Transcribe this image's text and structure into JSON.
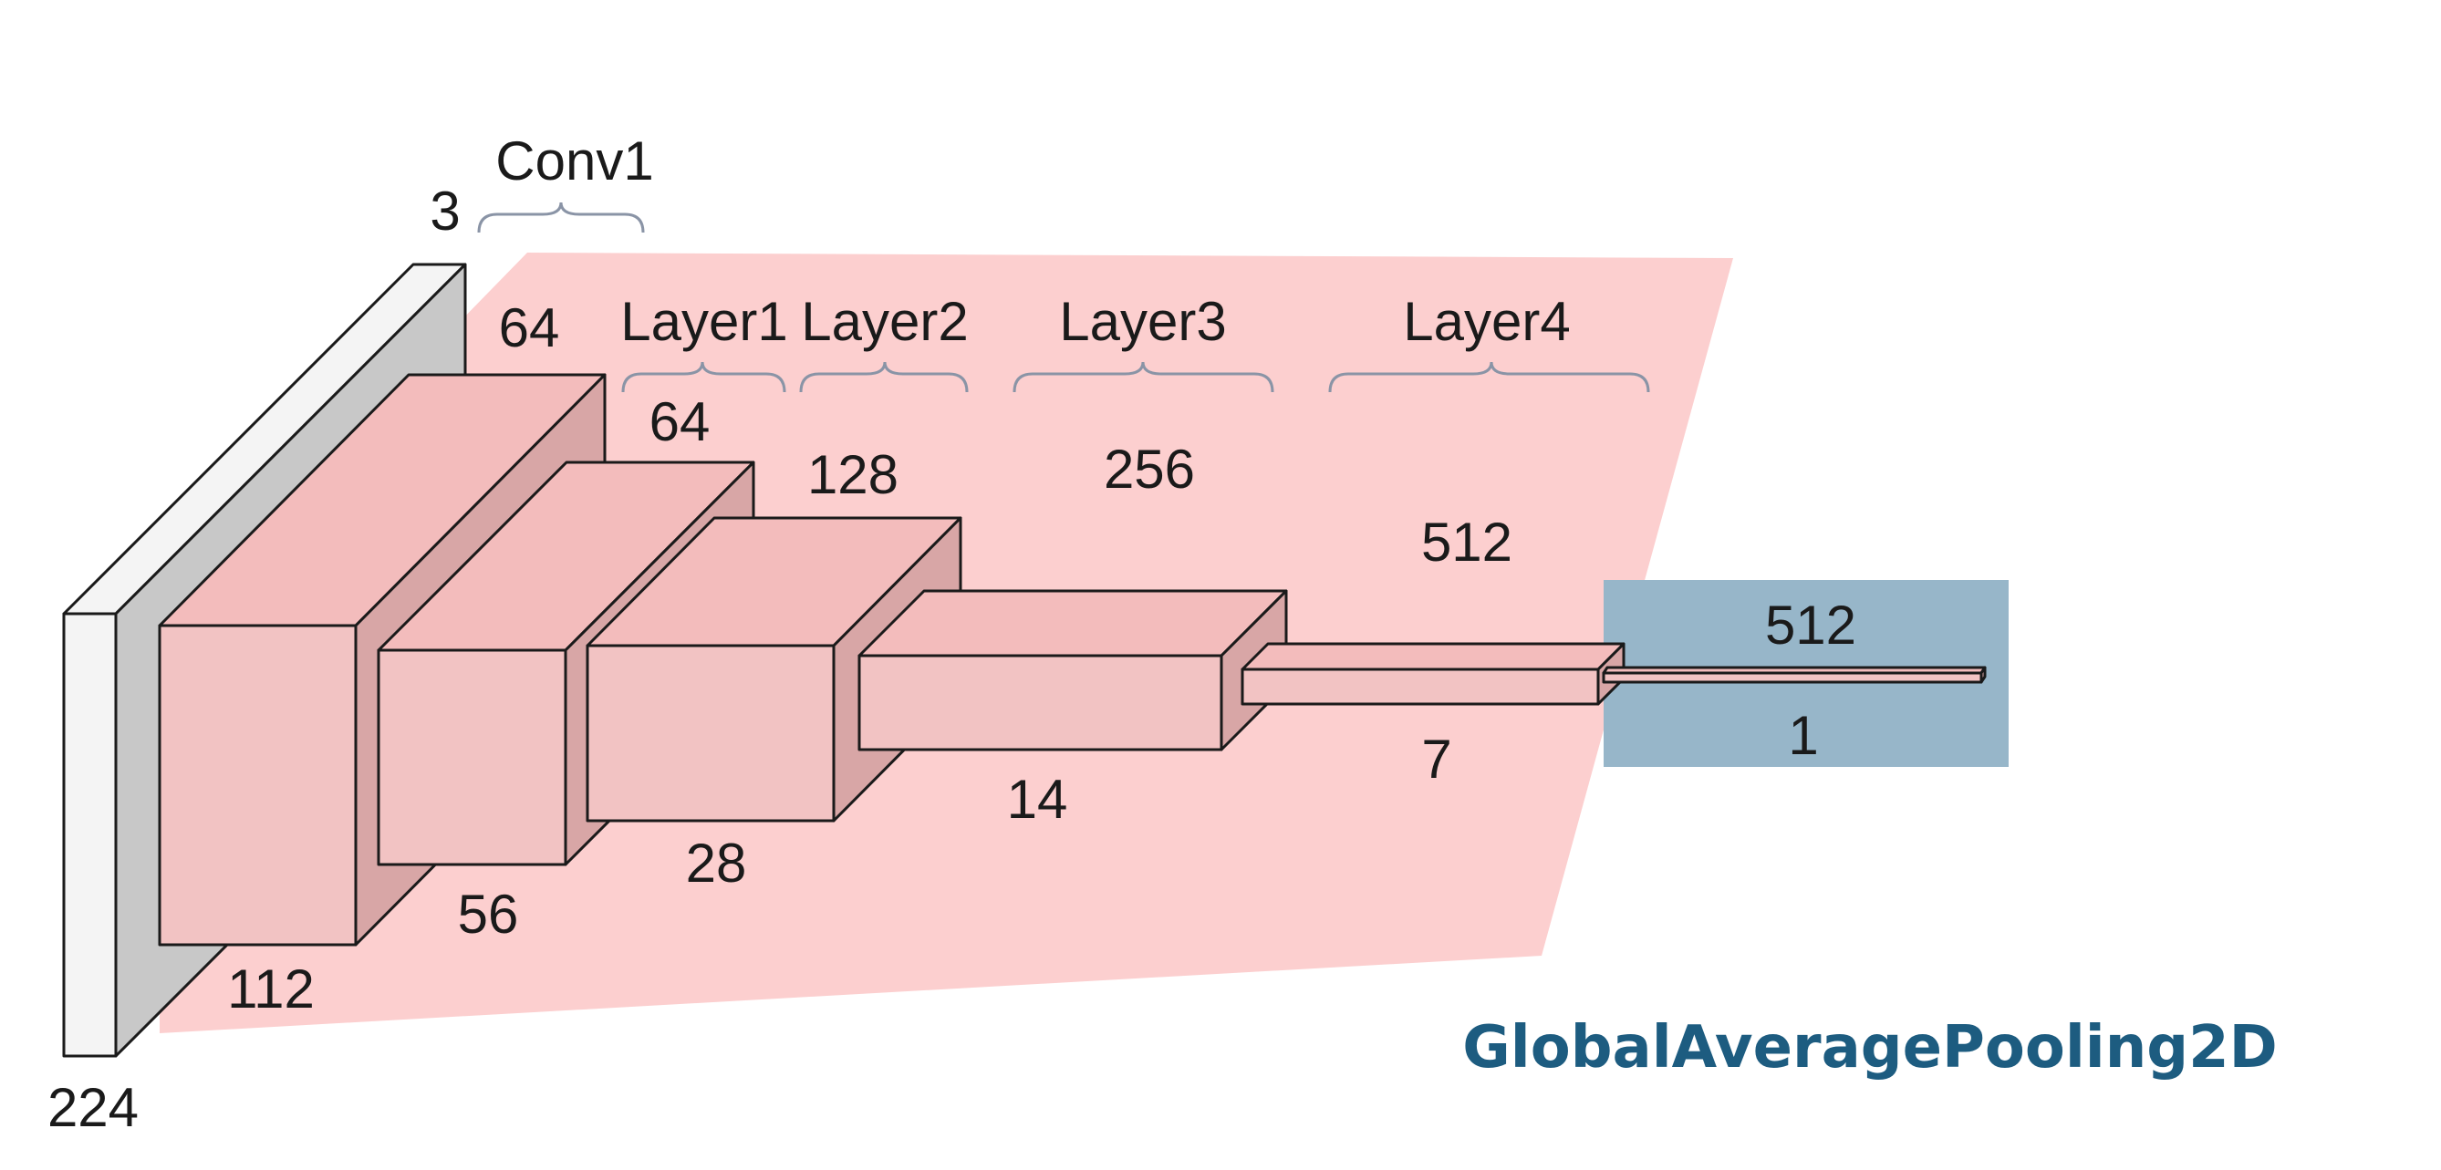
{
  "colors": {
    "highlight_red": "#fccfcf",
    "highlight_blue": "#97b6c9",
    "block_front": "#f2c3c3",
    "block_top": "#f3bcbc",
    "block_side": "#d8a6a6",
    "input_front": "#f4f4f4",
    "input_side": "#c8c8c8",
    "title": "#1d5c80"
  },
  "input": {
    "channels": "3",
    "size": "224"
  },
  "conv1": {
    "name": "Conv1",
    "channels": "64",
    "size": "112"
  },
  "layer1": {
    "name": "Layer1",
    "channels": "64",
    "size": "56"
  },
  "layer2": {
    "name": "Layer2",
    "channels": "128",
    "size": "28"
  },
  "layer3": {
    "name": "Layer3",
    "channels": "256",
    "size": "14"
  },
  "layer4": {
    "name": "Layer4",
    "channels": "512",
    "size": "7"
  },
  "pooling": {
    "name": "GlobalAveragePooling2D",
    "channels": "512",
    "size": "1"
  }
}
